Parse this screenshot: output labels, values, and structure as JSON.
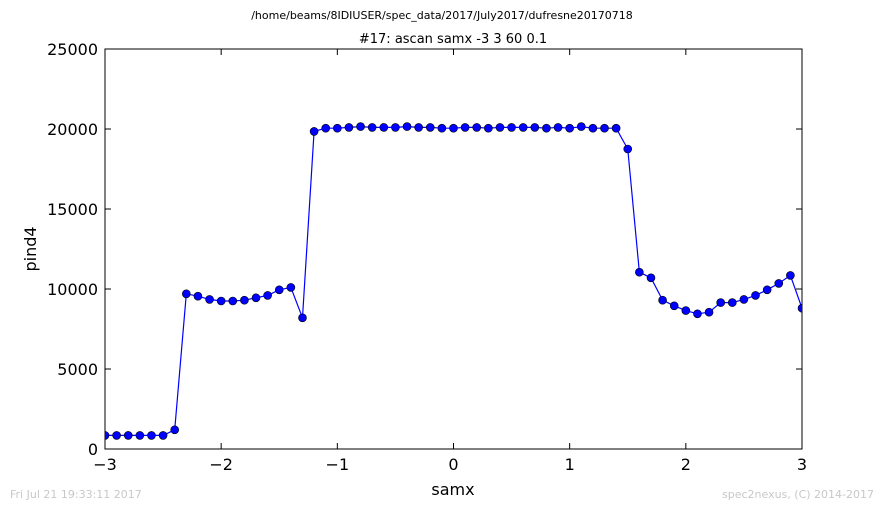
{
  "page": {
    "file_path": "/home/beams/8IDIUSER/spec_data/2017/July2017/dufresne20170718",
    "footer_timestamp": "Fri Jul 21 19:33:11 2017",
    "footer_credit": "spec2nexus, (C) 2014-2017"
  },
  "chart_data": {
    "type": "line",
    "title": "#17: ascan  samx -3 3  60 0.1",
    "xlabel": "samx",
    "ylabel": "pind4",
    "xlim": [
      -3,
      3
    ],
    "ylim": [
      0,
      25000
    ],
    "x_ticks": [
      -3,
      -2,
      -1,
      0,
      1,
      2,
      3
    ],
    "x_tick_labels": [
      "−3",
      "−2",
      "−1",
      "0",
      "1",
      "2",
      "3"
    ],
    "y_ticks": [
      0,
      5000,
      10000,
      15000,
      20000,
      25000
    ],
    "y_tick_labels": [
      "0",
      "5000",
      "10000",
      "15000",
      "20000",
      "25000"
    ],
    "grid": false,
    "legend": "none",
    "colors": {
      "line": "#0000ff",
      "marker": "#0000ff",
      "marker_edge": "#000000"
    },
    "series": [
      {
        "x": [
          -3.0,
          -2.9,
          -2.8,
          -2.7,
          -2.6,
          -2.5,
          -2.4,
          -2.3,
          -2.2,
          -2.1,
          -2.0,
          -1.9,
          -1.8,
          -1.7,
          -1.6,
          -1.5,
          -1.4,
          -1.3,
          -1.2,
          -1.1,
          -1.0,
          -0.9,
          -0.8,
          -0.7,
          -0.6,
          -0.5,
          -0.4,
          -0.3,
          -0.2,
          -0.1,
          0.0,
          0.1,
          0.2,
          0.3,
          0.4,
          0.5,
          0.6,
          0.7,
          0.8,
          0.9,
          1.0,
          1.1,
          1.2,
          1.3,
          1.4,
          1.5,
          1.6,
          1.7,
          1.8,
          1.9,
          2.0,
          2.1,
          2.2,
          2.3,
          2.4,
          2.5,
          2.6,
          2.7,
          2.8,
          2.9,
          3.0
        ],
        "y": [
          850,
          850,
          850,
          850,
          850,
          850,
          1200,
          9700,
          9550,
          9350,
          9250,
          9250,
          9300,
          9450,
          9600,
          9950,
          10100,
          8200,
          19850,
          20050,
          20050,
          20100,
          20150,
          20100,
          20100,
          20100,
          20150,
          20100,
          20100,
          20050,
          20050,
          20100,
          20100,
          20050,
          20100,
          20100,
          20100,
          20100,
          20050,
          20100,
          20050,
          20150,
          20050,
          20050,
          20050,
          18750,
          11050,
          10700,
          9300,
          8950,
          8650,
          8450,
          8550,
          9150,
          9150,
          9350,
          9600,
          9950,
          10350,
          10850,
          8800
        ]
      }
    ]
  }
}
